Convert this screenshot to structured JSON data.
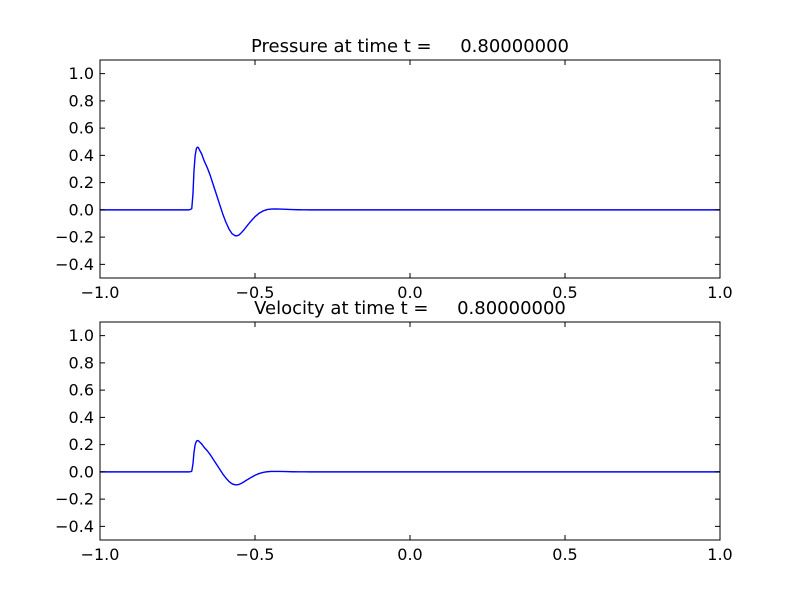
{
  "chart_data": [
    {
      "type": "line",
      "title": "Pressure at time t =     0.80000000",
      "xlabel": "",
      "ylabel": "",
      "xlim": [
        -1.0,
        1.0
      ],
      "ylim": [
        -0.5,
        1.1
      ],
      "grid": false,
      "xticks": [
        -1.0,
        -0.5,
        0.0,
        0.5,
        1.0
      ],
      "xtick_labels": [
        "−1.0",
        "−0.5",
        "0.0",
        "0.5",
        "1.0"
      ],
      "yticks": [
        -0.4,
        -0.2,
        0.0,
        0.2,
        0.4,
        0.6,
        0.8,
        1.0
      ],
      "ytick_labels": [
        "−0.4",
        "−0.2",
        "0.0",
        "0.2",
        "0.4",
        "0.6",
        "0.8",
        "1.0"
      ],
      "series": [
        {
          "color": "#0000ff",
          "x": [
            -1.0,
            -0.75,
            -0.715,
            -0.708,
            -0.704,
            -0.7,
            -0.697,
            -0.693,
            -0.689,
            -0.686,
            -0.683,
            -0.679,
            -0.672,
            -0.664,
            -0.654,
            -0.644,
            -0.634,
            -0.624,
            -0.614,
            -0.604,
            -0.594,
            -0.584,
            -0.574,
            -0.564,
            -0.558,
            -0.552,
            -0.545,
            -0.535,
            -0.525,
            -0.512,
            -0.5,
            -0.487,
            -0.474,
            -0.461,
            -0.448,
            -0.435,
            -0.42,
            -0.4,
            -0.38,
            -0.36,
            -0.34,
            -0.32,
            -0.3,
            0.0,
            0.5,
            1.0
          ],
          "y": [
            0.0,
            0.0,
            0.0,
            0.003,
            0.01,
            0.12,
            0.28,
            0.4,
            0.45,
            0.46,
            0.458,
            0.44,
            0.41,
            0.36,
            0.31,
            0.25,
            0.18,
            0.11,
            0.04,
            -0.03,
            -0.09,
            -0.14,
            -0.175,
            -0.19,
            -0.19,
            -0.185,
            -0.17,
            -0.145,
            -0.115,
            -0.08,
            -0.05,
            -0.025,
            -0.008,
            0.002,
            0.006,
            0.007,
            0.006,
            0.004,
            0.002,
            0.001,
            0.0005,
            0.0,
            0.0,
            0.0,
            0.0,
            0.0
          ]
        }
      ]
    },
    {
      "type": "line",
      "title": "Velocity at time t =     0.80000000",
      "xlabel": "",
      "ylabel": "",
      "xlim": [
        -1.0,
        1.0
      ],
      "ylim": [
        -0.5,
        1.1
      ],
      "grid": false,
      "xticks": [
        -1.0,
        -0.5,
        0.0,
        0.5,
        1.0
      ],
      "xtick_labels": [
        "−1.0",
        "−0.5",
        "0.0",
        "0.5",
        "1.0"
      ],
      "yticks": [
        -0.4,
        -0.2,
        0.0,
        0.2,
        0.4,
        0.6,
        0.8,
        1.0
      ],
      "ytick_labels": [
        "−0.4",
        "−0.2",
        "0.0",
        "0.2",
        "0.4",
        "0.6",
        "0.8",
        "1.0"
      ],
      "series": [
        {
          "color": "#0000ff",
          "x": [
            -1.0,
            -0.75,
            -0.715,
            -0.708,
            -0.704,
            -0.7,
            -0.697,
            -0.693,
            -0.689,
            -0.686,
            -0.683,
            -0.679,
            -0.672,
            -0.664,
            -0.654,
            -0.644,
            -0.634,
            -0.624,
            -0.614,
            -0.604,
            -0.594,
            -0.584,
            -0.574,
            -0.564,
            -0.558,
            -0.552,
            -0.545,
            -0.535,
            -0.525,
            -0.512,
            -0.5,
            -0.487,
            -0.474,
            -0.461,
            -0.448,
            -0.435,
            -0.42,
            -0.4,
            -0.38,
            -0.36,
            -0.34,
            -0.32,
            -0.3,
            0.0,
            0.5,
            1.0
          ],
          "y": [
            0.0,
            0.0,
            0.0,
            0.0015,
            0.005,
            0.06,
            0.14,
            0.2,
            0.225,
            0.23,
            0.229,
            0.22,
            0.205,
            0.18,
            0.155,
            0.125,
            0.09,
            0.055,
            0.02,
            -0.015,
            -0.045,
            -0.07,
            -0.0875,
            -0.095,
            -0.095,
            -0.0925,
            -0.085,
            -0.0725,
            -0.0575,
            -0.04,
            -0.025,
            -0.0125,
            -0.004,
            0.001,
            0.003,
            0.0035,
            0.003,
            0.002,
            0.001,
            0.0005,
            0.0002,
            0.0,
            0.0,
            0.0,
            0.0,
            0.0
          ]
        }
      ]
    }
  ]
}
